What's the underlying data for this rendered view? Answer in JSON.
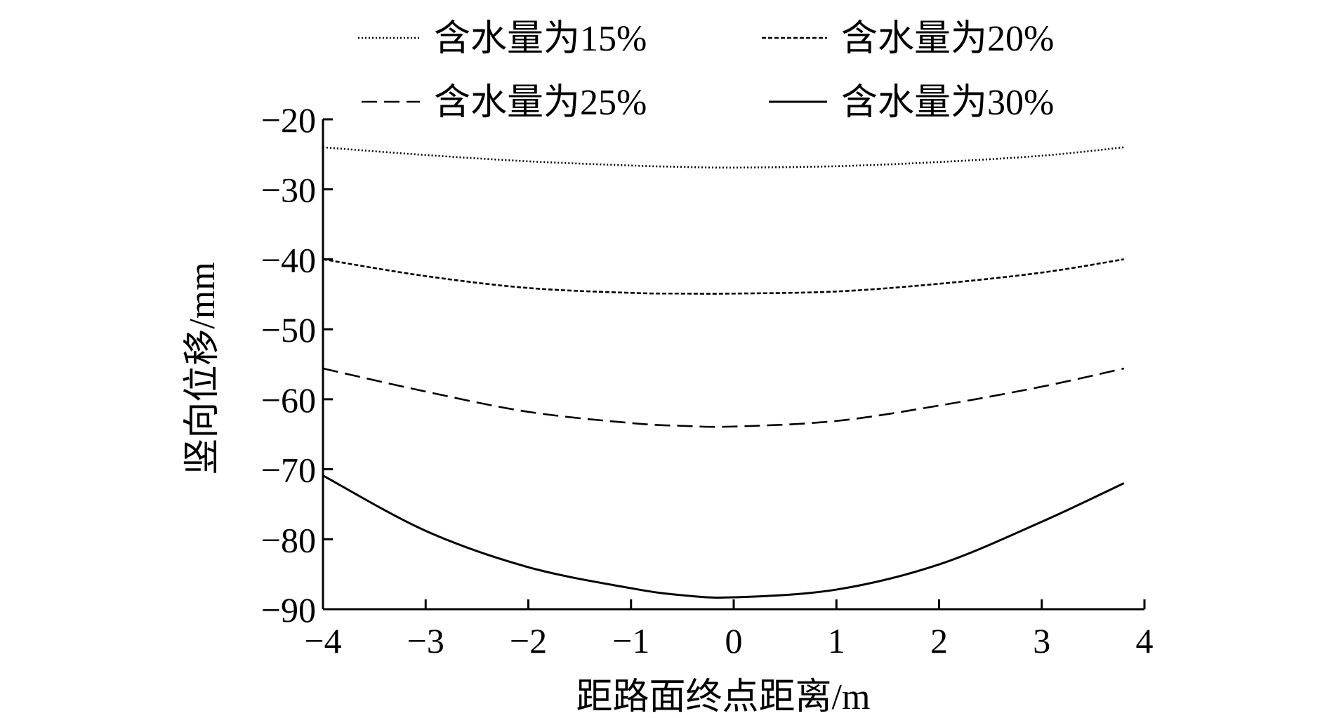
{
  "chart_data": {
    "type": "line",
    "xlabel": "距路面终点距离/m",
    "ylabel": "竖向位移/mm",
    "xlim": [
      -4,
      4
    ],
    "ylim": [
      -90,
      -20
    ],
    "xticks": [
      "−4",
      "−3",
      "−2",
      "−1",
      "0",
      "1",
      "2",
      "3",
      "4"
    ],
    "yticks": [
      "−20",
      "−30",
      "−40",
      "−50",
      "−60",
      "−70",
      "−80",
      "−90"
    ],
    "grid": false,
    "legend_position": "top",
    "x": [
      -4,
      -3,
      -2,
      -1,
      -0.5,
      0,
      1,
      2,
      3,
      3.8
    ],
    "series": [
      {
        "name": "含水量为15%",
        "line_style": "dotted",
        "values": [
          -24.0,
          -25.1,
          -26.0,
          -26.6,
          -26.8,
          -26.9,
          -26.7,
          -26.1,
          -25.2,
          -24.0
        ]
      },
      {
        "name": "含水量为20%",
        "line_style": "short-dash",
        "values": [
          -40.0,
          -42.4,
          -44.1,
          -44.8,
          -44.9,
          -44.9,
          -44.6,
          -43.5,
          -41.9,
          -40.0
        ]
      },
      {
        "name": "含水量为25%",
        "line_style": "long-dash",
        "values": [
          -55.6,
          -58.9,
          -61.8,
          -63.4,
          -63.8,
          -63.9,
          -63.1,
          -60.9,
          -58.2,
          -55.6
        ]
      },
      {
        "name": "含水量为30%",
        "line_style": "solid",
        "values": [
          -70.9,
          -78.8,
          -84.0,
          -87.0,
          -88.0,
          -88.3,
          -87.2,
          -83.6,
          -77.5,
          -72.0
        ]
      }
    ]
  }
}
